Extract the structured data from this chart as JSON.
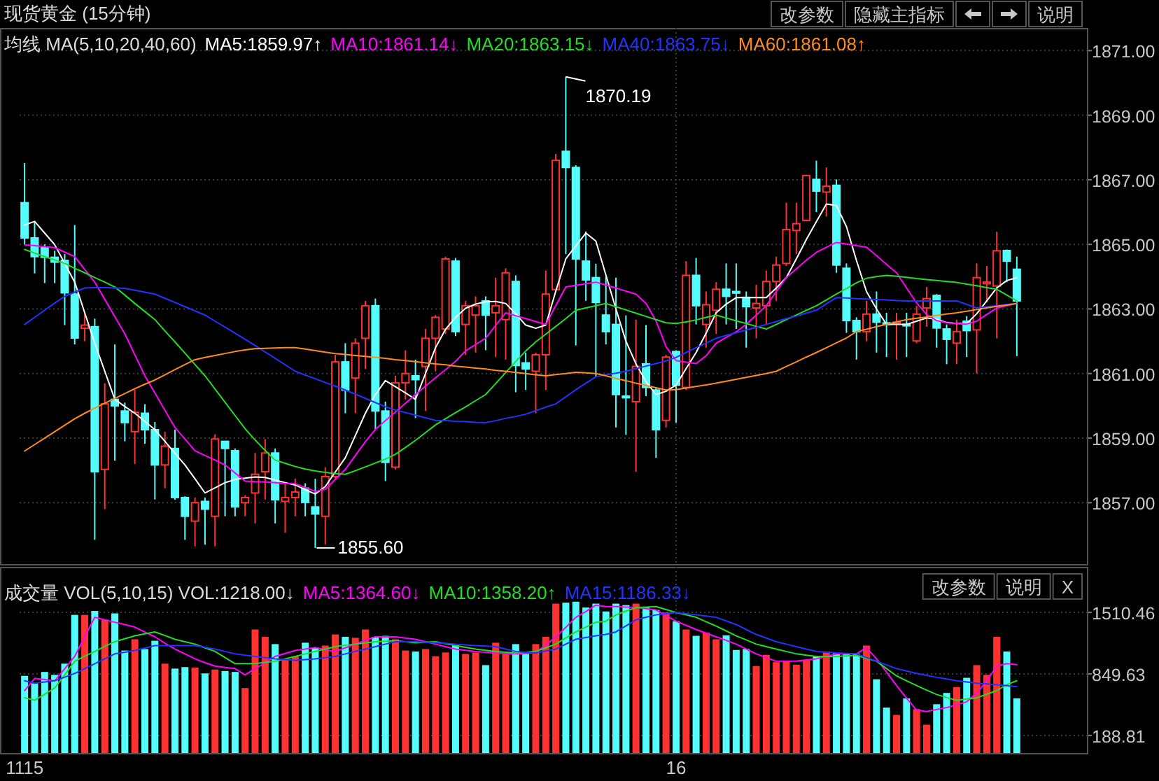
{
  "chart_data": [
    {
      "type": "candlestick",
      "title": "现货黄金 (15分钟)",
      "legend_title": "均线 MA(5,10,20,40,60)",
      "legend": "top left",
      "grid": true,
      "tick_labels": "y",
      "categories": [
        "1115",
        null,
        null,
        null,
        null,
        null,
        null,
        null,
        null,
        null,
        null,
        null,
        null,
        null,
        null,
        null,
        null,
        null,
        null,
        null,
        null,
        null,
        null,
        null,
        null,
        null,
        null,
        null,
        null,
        null,
        null,
        null,
        null,
        null,
        null,
        null,
        null,
        null,
        null,
        null,
        null,
        null,
        null,
        null,
        null,
        null,
        null,
        null,
        null,
        null,
        null,
        null,
        null,
        null,
        null,
        null,
        null,
        null,
        null,
        null,
        null,
        null,
        null,
        null,
        null,
        "16",
        null,
        null,
        null,
        null,
        null,
        null,
        null,
        null,
        null,
        null,
        null,
        null,
        null,
        null,
        null,
        null,
        null,
        null,
        null,
        null,
        null,
        null,
        null,
        null,
        null,
        null,
        null,
        null,
        null,
        null,
        null,
        null,
        null,
        null
      ],
      "ylim": [
        1855.1,
        1871.7
      ],
      "yticks": [
        {
          "value": 1857,
          "label": "1857.00"
        },
        {
          "value": 1859,
          "label": "1859.00"
        },
        {
          "value": 1861,
          "label": "1861.00"
        },
        {
          "value": 1863,
          "label": "1863.00"
        },
        {
          "value": 1865,
          "label": "1865.00"
        },
        {
          "value": 1867,
          "label": "1867.00"
        },
        {
          "value": 1869,
          "label": "1869.00"
        },
        {
          "value": 1871,
          "label": "1871.00"
        }
      ],
      "ohlc": [
        [
          1866.29,
          1867.52,
          1865.0,
          1865.2
        ],
        [
          1865.2,
          1865.7,
          1864.1,
          1864.62
        ],
        [
          1864.9,
          1865.0,
          1863.8,
          1864.6
        ],
        [
          1864.6,
          1864.8,
          1863.8,
          1864.45
        ],
        [
          1864.5,
          1864.7,
          1862.5,
          1863.5
        ],
        [
          1863.46,
          1865.6,
          1861.9,
          1862.1
        ],
        [
          1862.4,
          1862.9,
          1862.0,
          1862.5
        ],
        [
          1862.45,
          1862.7,
          1855.85,
          1857.96
        ],
        [
          1858.03,
          1860.7,
          1856.8,
          1860.06
        ],
        [
          1860.2,
          1861.9,
          1858.3,
          1860.0
        ],
        [
          1859.84,
          1860.1,
          1858.9,
          1859.48
        ],
        [
          1859.2,
          1860.5,
          1858.2,
          1859.8
        ],
        [
          1859.77,
          1860.05,
          1858.83,
          1859.26
        ],
        [
          1859.26,
          1859.5,
          1857.1,
          1858.17
        ],
        [
          1858.17,
          1859.2,
          1857.45,
          1858.75
        ],
        [
          1858.68,
          1859.26,
          1857.09,
          1857.16
        ],
        [
          1857.16,
          1857.2,
          1855.85,
          1856.58
        ],
        [
          1856.43,
          1857.16,
          1855.65,
          1857.0
        ],
        [
          1857.04,
          1857.16,
          1855.7,
          1856.8
        ],
        [
          1856.58,
          1859.12,
          1855.65,
          1858.97
        ],
        [
          1858.9,
          1858.9,
          1856.58,
          1858.68
        ],
        [
          1858.61,
          1858.68,
          1856.58,
          1856.87
        ],
        [
          1857.0,
          1857.23,
          1856.58,
          1857.16
        ],
        [
          1857.3,
          1858.54,
          1856.36,
          1857.88
        ],
        [
          1857.96,
          1858.97,
          1857.1,
          1858.54
        ],
        [
          1858.54,
          1858.68,
          1856.36,
          1857.09
        ],
        [
          1857.04,
          1857.6,
          1856.07,
          1857.16
        ],
        [
          1857.16,
          1857.74,
          1856.58,
          1857.33
        ],
        [
          1857.45,
          1857.6,
          1856.58,
          1857.01
        ],
        [
          1856.87,
          1857.74,
          1855.6,
          1856.65
        ],
        [
          1856.58,
          1858.1,
          1855.7,
          1857.81
        ],
        [
          1857.81,
          1861.58,
          1857.74,
          1861.36
        ],
        [
          1861.36,
          1861.94,
          1859.77,
          1860.49
        ],
        [
          1860.86,
          1862.09,
          1859.77,
          1861.94
        ],
        [
          1862.09,
          1863.25,
          1861.14,
          1863.1
        ],
        [
          1863.1,
          1863.32,
          1859.26,
          1859.84
        ],
        [
          1859.84,
          1860.13,
          1857.67,
          1858.25
        ],
        [
          1858.1,
          1860.93,
          1858.03,
          1860.71
        ],
        [
          1860.71,
          1861.72,
          1860.2,
          1861.0
        ],
        [
          1860.93,
          1861.43,
          1859.62,
          1860.81
        ],
        [
          1861.22,
          1862.38,
          1859.84,
          1862.09
        ],
        [
          1862.09,
          1862.81,
          1861.07,
          1862.74
        ],
        [
          1862.38,
          1864.62,
          1862.23,
          1864.55
        ],
        [
          1864.48,
          1864.58,
          1862.16,
          1862.3
        ],
        [
          1862.52,
          1863.25,
          1861.58,
          1863.1
        ],
        [
          1862.81,
          1863.39,
          1861.65,
          1863.1
        ],
        [
          1863.25,
          1863.39,
          1861.72,
          1862.81
        ],
        [
          1862.88,
          1863.97,
          1861.51,
          1863.1
        ],
        [
          1862.67,
          1864.26,
          1861.43,
          1864.12
        ],
        [
          1863.85,
          1864.04,
          1860.42,
          1861.25
        ],
        [
          1861.33,
          1861.65,
          1860.49,
          1861.14
        ],
        [
          1861.07,
          1861.65,
          1859.77,
          1861.58
        ],
        [
          1861.58,
          1864.19,
          1860.49,
          1863.46
        ],
        [
          1863.6,
          1867.8,
          1863.54,
          1867.6
        ],
        [
          1867.88,
          1870.19,
          1864.7,
          1867.38
        ],
        [
          1867.38,
          1867.45,
          1861.87,
          1864.55
        ],
        [
          1864.48,
          1865.4,
          1863.25,
          1863.9
        ],
        [
          1863.97,
          1864.4,
          1860.9,
          1863.2
        ],
        [
          1862.81,
          1864.0,
          1861.9,
          1862.3
        ],
        [
          1862.52,
          1863.97,
          1859.33,
          1860.35
        ],
        [
          1860.3,
          1862.8,
          1859.1,
          1860.25
        ],
        [
          1860.13,
          1862.67,
          1857.96,
          1861.22
        ],
        [
          1861.3,
          1862.5,
          1860.3,
          1860.57
        ],
        [
          1860.49,
          1860.57,
          1858.39,
          1859.26
        ],
        [
          1859.55,
          1861.58,
          1859.33,
          1861.51
        ],
        [
          1861.68,
          1861.72,
          1859.48,
          1860.64
        ],
        [
          1860.57,
          1864.48,
          1860.49,
          1864.04
        ],
        [
          1864.04,
          1864.58,
          1862.52,
          1863.1
        ],
        [
          1862.52,
          1863.54,
          1861.8,
          1863.13
        ],
        [
          1862.96,
          1863.83,
          1862.23,
          1863.61
        ],
        [
          1863.61,
          1864.41,
          1862.52,
          1863.39
        ],
        [
          1863.54,
          1864.41,
          1862.38,
          1863.49
        ],
        [
          1863.36,
          1863.54,
          1861.8,
          1863.07
        ],
        [
          1863.03,
          1863.75,
          1862.09,
          1863.17
        ],
        [
          1863.1,
          1864.19,
          1862.52,
          1863.85
        ],
        [
          1863.85,
          1864.62,
          1863.25,
          1864.36
        ],
        [
          1864.41,
          1866.29,
          1864.33,
          1865.46
        ],
        [
          1865.43,
          1866.29,
          1864.7,
          1865.64
        ],
        [
          1865.74,
          1867.16,
          1865.71,
          1867.13
        ],
        [
          1867.01,
          1867.59,
          1866.0,
          1866.65
        ],
        [
          1866.62,
          1867.38,
          1865.86,
          1866.8
        ],
        [
          1866.83,
          1867.01,
          1864.12,
          1864.36
        ],
        [
          1864.26,
          1864.41,
          1862.26,
          1862.64
        ],
        [
          1862.64,
          1862.74,
          1861.43,
          1862.3
        ],
        [
          1862.3,
          1863.25,
          1862.0,
          1862.84
        ],
        [
          1862.84,
          1863.54,
          1861.65,
          1862.59
        ],
        [
          1862.57,
          1862.88,
          1861.51,
          1862.52
        ],
        [
          1862.54,
          1862.88,
          1861.43,
          1862.59
        ],
        [
          1862.52,
          1862.88,
          1861.51,
          1862.48
        ],
        [
          1862.01,
          1863.1,
          1861.94,
          1862.84
        ],
        [
          1863.03,
          1863.68,
          1862.45,
          1863.32
        ],
        [
          1863.42,
          1863.46,
          1861.8,
          1862.41
        ],
        [
          1862.38,
          1862.52,
          1861.29,
          1862.06
        ],
        [
          1861.94,
          1862.67,
          1861.29,
          1862.3
        ],
        [
          1862.62,
          1862.78,
          1861.51,
          1862.33
        ],
        [
          1862.35,
          1864.41,
          1861.0,
          1863.97
        ],
        [
          1863.78,
          1864.33,
          1863.2,
          1863.83
        ],
        [
          1863.71,
          1865.39,
          1862.09,
          1864.8
        ],
        [
          1864.81,
          1864.84,
          1863.83,
          1864.48
        ],
        [
          1864.23,
          1864.62,
          1861.54,
          1863.25
        ]
      ],
      "series": [
        {
          "type": "line",
          "name": "MA5:1859.97↑",
          "color": "#ffffff",
          "values": [
            1865.6,
            1865.71,
            1865.35,
            1864.99,
            1864.41,
            1863.83,
            1862.88,
            1861.94,
            1861.07,
            1860.2,
            1859.98,
            1859.77,
            1859.52,
            1859.26,
            1858.9,
            1858.53,
            1858.17,
            1857.74,
            1857.3,
            1857.46,
            1857.62,
            1857.72,
            1857.76,
            1857.8,
            1857.78,
            1857.7,
            1857.62,
            1857.55,
            1857.4,
            1857.27,
            1857.5,
            1857.95,
            1858.39,
            1859.08,
            1859.77,
            1860.35,
            1860.78,
            1860.59,
            1860.4,
            1860.2,
            1861.0,
            1861.8,
            1862.37,
            1862.74,
            1863.02,
            1863.15,
            1863.22,
            1863.23,
            1863.17,
            1862.85,
            1862.5,
            1862.4,
            1862.5,
            1863.55,
            1864.55,
            1864.95,
            1865.35,
            1865.1,
            1864.05,
            1863.0,
            1862.0,
            1861.3,
            1860.75,
            1860.35,
            1860.45,
            1860.64,
            1861.15,
            1861.65,
            1862.25,
            1862.88,
            1863.15,
            1863.35,
            1863.35,
            1863.35,
            1863.35,
            1863.65,
            1863.97,
            1864.55,
            1865.15,
            1865.7,
            1866.25,
            1866.2,
            1865.55,
            1864.5,
            1863.54,
            1863.0,
            1862.52,
            1862.52,
            1862.52,
            1862.62,
            1862.72,
            1862.68,
            1862.58,
            1862.55,
            1862.55,
            1862.85,
            1863.25,
            1863.65,
            1863.88,
            1863.97
          ]
        },
        {
          "type": "line",
          "name": "MA10:1861.14↓",
          "color": "#ff00ff",
          "values": [
            1864.99,
            1864.96,
            1864.93,
            1864.9,
            1864.76,
            1864.62,
            1864.22,
            1863.83,
            1863.3,
            1862.76,
            1862.23,
            1861.58,
            1860.93,
            1860.4,
            1859.86,
            1859.33,
            1858.97,
            1858.61,
            1858.46,
            1858.32,
            1858.17,
            1857.92,
            1857.67,
            1857.65,
            1857.64,
            1857.62,
            1857.6,
            1857.59,
            1857.47,
            1857.35,
            1857.42,
            1857.72,
            1858.03,
            1858.46,
            1858.89,
            1859.27,
            1859.54,
            1859.81,
            1860.08,
            1860.35,
            1860.61,
            1860.87,
            1861.12,
            1861.38,
            1861.7,
            1861.9,
            1862.09,
            1862.49,
            1862.88,
            1862.79,
            1862.7,
            1862.61,
            1862.52,
            1863.1,
            1863.68,
            1863.73,
            1863.78,
            1863.83,
            1863.74,
            1863.65,
            1863.55,
            1863.46,
            1863.17,
            1862.63,
            1861.83,
            1861.4,
            1861.35,
            1861.31,
            1861.55,
            1861.94,
            1862.12,
            1862.29,
            1862.52,
            1862.81,
            1863.1,
            1863.54,
            1863.97,
            1864.24,
            1864.51,
            1864.75,
            1864.91,
            1865.06,
            1865.01,
            1864.96,
            1864.91,
            1864.65,
            1864.38,
            1864.12,
            1863.65,
            1863.19,
            1862.83,
            1862.64,
            1862.57,
            1862.55,
            1862.53,
            1862.62,
            1862.83,
            1863.03,
            1863.1,
            1863.17
          ]
        },
        {
          "type": "line",
          "name": "MA20:1863.15↓",
          "color": "#22dd22",
          "values": [
            1864.84,
            1864.73,
            1864.62,
            1864.52,
            1864.41,
            1864.26,
            1864.12,
            1863.97,
            1863.83,
            1863.68,
            1863.43,
            1863.17,
            1862.92,
            1862.67,
            1862.32,
            1861.98,
            1861.63,
            1861.28,
            1860.93,
            1860.52,
            1860.11,
            1859.7,
            1859.29,
            1858.94,
            1858.62,
            1858.32,
            1858.22,
            1858.12,
            1858.04,
            1857.98,
            1857.94,
            1857.9,
            1857.88,
            1857.99,
            1858.11,
            1858.23,
            1858.35,
            1858.5,
            1858.71,
            1858.93,
            1859.17,
            1859.41,
            1859.6,
            1859.79,
            1859.97,
            1860.16,
            1860.35,
            1860.69,
            1861.03,
            1861.37,
            1861.7,
            1861.98,
            1862.22,
            1862.46,
            1862.7,
            1862.96,
            1863.03,
            1863.1,
            1863.17,
            1863.07,
            1862.97,
            1862.87,
            1862.77,
            1862.67,
            1862.57,
            1862.55,
            1862.6,
            1862.66,
            1862.74,
            1862.81,
            1862.72,
            1862.63,
            1862.55,
            1862.46,
            1862.38,
            1862.52,
            1862.67,
            1862.81,
            1862.96,
            1863.1,
            1863.28,
            1863.46,
            1863.63,
            1863.81,
            1863.95,
            1864.0,
            1864.04,
            1864.01,
            1863.98,
            1863.94,
            1863.91,
            1863.88,
            1863.85,
            1863.82,
            1863.77,
            1863.72,
            1863.66,
            1863.61,
            1863.43,
            1863.25
          ]
        },
        {
          "type": "line",
          "name": "MA40:1863.75↓",
          "color": "#2233ff",
          "values": [
            1862.52,
            1862.74,
            1862.96,
            1863.18,
            1863.39,
            1863.52,
            1863.65,
            1863.66,
            1863.66,
            1863.65,
            1863.64,
            1863.58,
            1863.52,
            1863.46,
            1863.33,
            1863.2,
            1863.07,
            1862.94,
            1862.81,
            1862.62,
            1862.44,
            1862.25,
            1862.06,
            1861.87,
            1861.67,
            1861.47,
            1861.27,
            1861.07,
            1860.95,
            1860.84,
            1860.72,
            1860.61,
            1860.49,
            1860.36,
            1860.23,
            1860.1,
            1859.97,
            1859.87,
            1859.79,
            1859.71,
            1859.63,
            1859.55,
            1859.54,
            1859.52,
            1859.51,
            1859.49,
            1859.48,
            1859.54,
            1859.61,
            1859.67,
            1859.74,
            1859.85,
            1859.96,
            1860.06,
            1860.28,
            1860.5,
            1860.7,
            1860.9,
            1860.96,
            1861.01,
            1861.07,
            1861.15,
            1861.23,
            1861.31,
            1861.39,
            1861.5,
            1861.65,
            1861.8,
            1861.94,
            1862.09,
            1862.18,
            1862.26,
            1862.35,
            1862.43,
            1862.52,
            1862.61,
            1862.7,
            1862.78,
            1862.87,
            1862.96,
            1863.16,
            1863.35,
            1863.34,
            1863.32,
            1863.31,
            1863.29,
            1863.28,
            1863.26,
            1863.25,
            1863.25,
            1863.25,
            1863.25,
            1863.25,
            1863.25,
            1863.14,
            1863.03,
            1863.07,
            1863.1,
            1863.14,
            1863.17
          ]
        },
        {
          "type": "line",
          "name": "MA60:1861.08↑",
          "color": "#ff8c1a",
          "values": [
            1858.6,
            1858.8,
            1859.0,
            1859.2,
            1859.4,
            1859.6,
            1859.77,
            1859.93,
            1860.08,
            1860.23,
            1860.38,
            1860.53,
            1860.67,
            1860.8,
            1860.96,
            1861.12,
            1861.28,
            1861.43,
            1861.5,
            1861.56,
            1861.62,
            1861.68,
            1861.73,
            1861.77,
            1861.78,
            1861.79,
            1861.8,
            1861.8,
            1861.76,
            1861.71,
            1861.66,
            1861.62,
            1861.59,
            1861.56,
            1861.53,
            1861.5,
            1861.47,
            1861.43,
            1861.4,
            1861.37,
            1861.33,
            1861.3,
            1861.27,
            1861.23,
            1861.2,
            1861.17,
            1861.14,
            1861.1,
            1861.07,
            1861.03,
            1861.0,
            1860.96,
            1860.93,
            1860.97,
            1861.0,
            1861.04,
            1861.02,
            1861.0,
            1860.93,
            1860.85,
            1860.78,
            1860.7,
            1860.63,
            1860.56,
            1860.49,
            1860.5,
            1860.55,
            1860.6,
            1860.65,
            1860.7,
            1860.76,
            1860.82,
            1860.88,
            1860.94,
            1861.0,
            1861.07,
            1861.22,
            1861.36,
            1861.51,
            1861.65,
            1861.8,
            1861.95,
            1862.1,
            1862.3,
            1862.37,
            1862.45,
            1862.52,
            1862.6,
            1862.67,
            1862.71,
            1862.75,
            1862.8,
            1862.84,
            1862.88,
            1862.93,
            1862.98,
            1863.03,
            1863.08,
            1863.12,
            1863.17
          ]
        }
      ],
      "annotations": [
        "1870.19",
        "1855.60",
        "改参数",
        "隐藏主指标",
        "说明"
      ]
    },
    {
      "type": "bar",
      "legend_title": "成交量 VOL(5,10,15) VOL:1218.00↓",
      "legend": "top left",
      "grid": true,
      "categories": [
        "1115",
        null,
        null,
        null,
        null,
        null,
        null,
        null,
        null,
        null,
        null,
        null,
        null,
        null,
        null,
        null,
        null,
        null,
        null,
        null,
        null,
        null,
        null,
        null,
        null,
        null,
        null,
        null,
        null,
        null,
        null,
        null,
        null,
        null,
        null,
        null,
        null,
        null,
        null,
        null,
        null,
        null,
        null,
        null,
        null,
        null,
        null,
        null,
        null,
        null,
        null,
        null,
        null,
        null,
        null,
        null,
        null,
        null,
        null,
        null,
        null,
        null,
        null,
        null,
        null,
        "16",
        null,
        null,
        null,
        null,
        null,
        null,
        null,
        null,
        null,
        null,
        null,
        null,
        null,
        null,
        null,
        null,
        null,
        null,
        null,
        null,
        null,
        null,
        null,
        null,
        null,
        null,
        null,
        null,
        null,
        null,
        null,
        null,
        null,
        null
      ],
      "ylim": [
        0,
        2000
      ],
      "yticks": [
        188.81,
        849.63,
        1510.46
      ],
      "series": [
        {
          "values": [
            829,
            750,
            871,
            839,
            960,
            1484,
            1484,
            1526,
            1432,
            1500,
            1101,
            1222,
            1117,
            1206,
            960,
            907,
            923,
            918,
            855,
            897,
            881,
            871,
            698,
            1327,
            1248,
            1170,
            1012,
            1038,
            1185,
            1133,
            1154,
            1274,
            1248,
            1238,
            1327,
            1248,
            1259,
            1222,
            1101,
            1091,
            1117,
            1038,
            1080,
            1154,
            1065,
            1080,
            944,
            1185,
            1065,
            1170,
            1065,
            1170,
            1248,
            1605,
            1615,
            1626,
            1563,
            1605,
            1521,
            1605,
            1589,
            1605,
            1563,
            1537,
            1510,
            1416,
            1327,
            1259,
            1295,
            1222,
            1264,
            1107,
            1117,
            934,
            1054,
            976,
            986,
            949,
            1002,
            1038,
            1091,
            1075,
            1065,
            1065,
            1154,
            792,
            488,
            409,
            587,
            472,
            304,
            524,
            645,
            708,
            808,
            944,
            839,
            1248,
            1091,
            587
          ],
          "colors": [
            "#54fcfc",
            "#54fcfc",
            "#54fcfc",
            "#54fcfc",
            "#54fcfc",
            "#54fcfc",
            "#ff3232",
            "#54fcfc",
            "#ff3232",
            "#54fcfc",
            "#54fcfc",
            "#ff3232",
            "#54fcfc",
            "#54fcfc",
            "#ff3232",
            "#54fcfc",
            "#54fcfc",
            "#ff3232",
            "#54fcfc",
            "#ff3232",
            "#54fcfc",
            "#54fcfc",
            "#ff3232",
            "#ff3232",
            "#ff3232",
            "#54fcfc",
            "#ff3232",
            "#ff3232",
            "#54fcfc",
            "#54fcfc",
            "#ff3232",
            "#ff3232",
            "#54fcfc",
            "#ff3232",
            "#ff3232",
            "#54fcfc",
            "#54fcfc",
            "#ff3232",
            "#ff3232",
            "#54fcfc",
            "#ff3232",
            "#ff3232",
            "#ff3232",
            "#54fcfc",
            "#ff3232",
            "#ff3232",
            "#54fcfc",
            "#ff3232",
            "#ff3232",
            "#54fcfc",
            "#54fcfc",
            "#ff3232",
            "#ff3232",
            "#ff3232",
            "#54fcfc",
            "#54fcfc",
            "#54fcfc",
            "#54fcfc",
            "#54fcfc",
            "#54fcfc",
            "#54fcfc",
            "#ff3232",
            "#54fcfc",
            "#54fcfc",
            "#ff3232",
            "#54fcfc",
            "#ff3232",
            "#54fcfc",
            "#ff3232",
            "#ff3232",
            "#54fcfc",
            "#54fcfc",
            "#54fcfc",
            "#ff3232",
            "#ff3232",
            "#ff3232",
            "#ff3232",
            "#ff3232",
            "#ff3232",
            "#54fcfc",
            "#ff3232",
            "#54fcfc",
            "#54fcfc",
            "#54fcfc",
            "#ff3232",
            "#54fcfc",
            "#54fcfc",
            "#ff3232",
            "#54fcfc",
            "#ff3232",
            "#ff3232",
            "#54fcfc",
            "#54fcfc",
            "#ff3232",
            "#54fcfc",
            "#ff3232",
            "#ff3232",
            "#ff3232",
            "#54fcfc",
            "#54fcfc"
          ]
        },
        {
          "type": "line",
          "name": "MA5:1364.60↓",
          "color": "#ff00ff",
          "values": [
            671,
            802,
            790,
            776,
            905,
            1038,
            1250,
            1458,
            1430,
            1405,
            1380,
            1353,
            1300,
            1248,
            1180,
            1117,
            1065,
            1012,
            970,
            934,
            920,
            907,
            839,
            907,
            970,
            1038,
            1070,
            1101,
            1117,
            1133,
            1110,
            1091,
            1130,
            1170,
            1210,
            1248,
            1248,
            1248,
            1235,
            1222,
            1196,
            1170,
            1143,
            1117,
            1104,
            1091,
            1083,
            1075,
            1070,
            1065,
            1072,
            1080,
            1160,
            1248,
            1350,
            1458,
            1520,
            1589,
            1573,
            1573,
            1568,
            1563,
            1550,
            1537,
            1476,
            1416,
            1372,
            1327,
            1288,
            1248,
            1210,
            1170,
            1118,
            1065,
            1025,
            986,
            986,
            986,
            1000,
            1012,
            1038,
            1065,
            1065,
            1065,
            1133,
            1012,
            870,
            724,
            590,
            461,
            446,
            467,
            488,
            520,
            550,
            645,
            776,
            934,
            960,
            949
          ]
        },
        {
          "type": "line",
          "name": "MA10:1358.20↑",
          "color": "#22dd22",
          "values": [
            593,
            567,
            630,
            698,
            840,
            986,
            1040,
            1091,
            1145,
            1196,
            1228,
            1259,
            1280,
            1301,
            1262,
            1222,
            1196,
            1170,
            1130,
            1091,
            1025,
            960,
            960,
            960,
            973,
            986,
            1012,
            1038,
            1065,
            1091,
            1117,
            1143,
            1157,
            1170,
            1183,
            1196,
            1201,
            1206,
            1196,
            1185,
            1190,
            1196,
            1175,
            1154,
            1136,
            1117,
            1104,
            1091,
            1083,
            1075,
            1083,
            1091,
            1130,
            1170,
            1236,
            1301,
            1353,
            1405,
            1416,
            1484,
            1524,
            1563,
            1568,
            1573,
            1541,
            1510,
            1484,
            1458,
            1411,
            1364,
            1312,
            1259,
            1215,
            1170,
            1143,
            1117,
            1091,
            1065,
            1051,
            1038,
            1038,
            1038,
            1043,
            1049,
            1017,
            986,
            907,
            829,
            776,
            724,
            676,
            629,
            597,
            566,
            580,
            593,
            632,
            671,
            734,
            776
          ]
        },
        {
          "type": "line",
          "name": "MA15:1186.33↓",
          "color": "#2233ff",
          "values": [
            776,
            750,
            763,
            776,
            815,
            855,
            907,
            960,
            1012,
            1065,
            1083,
            1101,
            1128,
            1154,
            1154,
            1154,
            1154,
            1154,
            1135,
            1117,
            1091,
            1065,
            1051,
            1038,
            1025,
            1012,
            1004,
            996,
            1004,
            1012,
            1025,
            1038,
            1065,
            1091,
            1117,
            1143,
            1170,
            1196,
            1196,
            1196,
            1190,
            1185,
            1178,
            1170,
            1162,
            1154,
            1148,
            1143,
            1117,
            1091,
            1083,
            1075,
            1096,
            1117,
            1170,
            1222,
            1240,
            1259,
            1274,
            1301,
            1366,
            1432,
            1458,
            1484,
            1497,
            1510,
            1497,
            1484,
            1471,
            1458,
            1419,
            1380,
            1327,
            1274,
            1235,
            1196,
            1170,
            1143,
            1117,
            1091,
            1083,
            1075,
            1070,
            1065,
            1025,
            986,
            946,
            907,
            881,
            855,
            834,
            813,
            795,
            776,
            763,
            750,
            742,
            734,
            724,
            713
          ]
        }
      ],
      "annotations": [
        "改参数",
        "说明",
        "X"
      ]
    }
  ]
}
